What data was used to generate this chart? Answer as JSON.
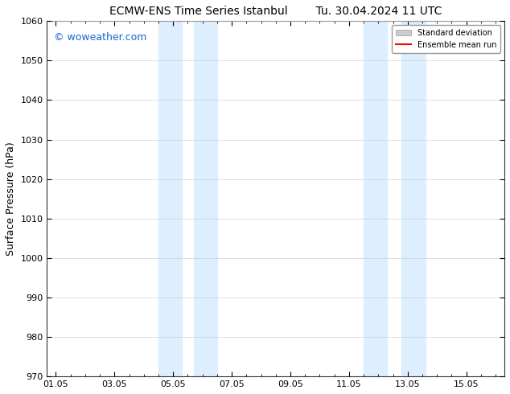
{
  "title_left": "ECMW-ENS Time Series Istanbul",
  "title_right": "Tu. 30.04.2024 11 UTC",
  "ylabel": "Surface Pressure (hPa)",
  "ylim": [
    970,
    1060
  ],
  "yticks": [
    970,
    980,
    990,
    1000,
    1010,
    1020,
    1030,
    1040,
    1050,
    1060
  ],
  "xtick_labels": [
    "01.05",
    "03.05",
    "05.05",
    "07.05",
    "09.05",
    "11.05",
    "13.05",
    "15.05"
  ],
  "xtick_positions": [
    0,
    2,
    4,
    6,
    8,
    10,
    12,
    14
  ],
  "shaded_bands": [
    {
      "x_start": 3.5,
      "x_end": 4.3
    },
    {
      "x_start": 4.7,
      "x_end": 5.5
    },
    {
      "x_start": 10.5,
      "x_end": 11.3
    },
    {
      "x_start": 11.8,
      "x_end": 12.6
    }
  ],
  "shaded_color": "#ddeeff",
  "watermark_text": "© woweather.com",
  "watermark_color": "#1a66cc",
  "watermark_fontsize": 9,
  "legend_std_label": "Standard deviation",
  "legend_mean_label": "Ensemble mean run",
  "legend_std_color": "#cccccc",
  "legend_mean_color": "#ff0000",
  "background_color": "#ffffff",
  "plot_bg_color": "#ffffff",
  "grid_color": "#d0d0d0",
  "title_fontsize": 10,
  "tick_fontsize": 8,
  "ylabel_fontsize": 9,
  "xlim": [
    -0.3,
    15.3
  ]
}
